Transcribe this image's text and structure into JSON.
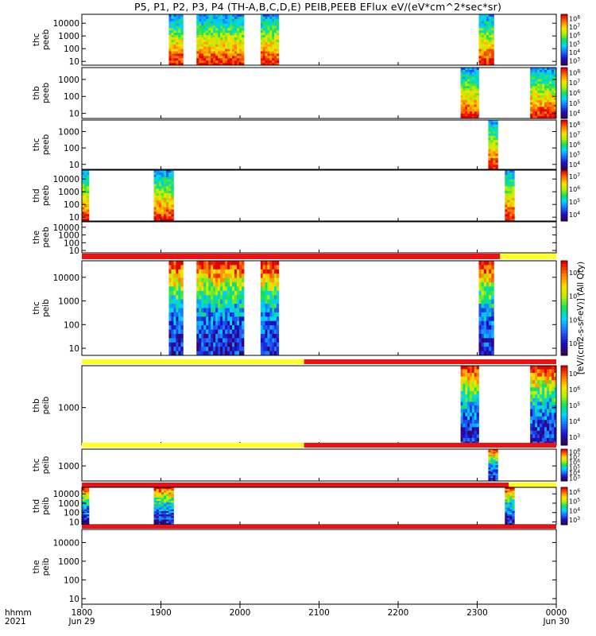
{
  "chart_data": {
    "type": "heatmap",
    "title": "P5, P1, P2, P3, P4 (TH-A,B,C,D,E) PEIB,PEEB EFlux eV/(eV*cm^2*sec*sr)",
    "colorbar_label": "[eV/(cm2-s-sr-eV)] (All Qty)",
    "x_axis": {
      "row_label_1": "hhmm",
      "row_label_2": "2021",
      "ticks": [
        "1800",
        "1900",
        "2000",
        "2100",
        "2200",
        "2300",
        "0000"
      ],
      "tick_values": [
        18,
        19,
        20,
        21,
        22,
        23,
        24
      ],
      "date_labels": [
        {
          "x": 18,
          "text": "Jun 29"
        },
        {
          "x": 24,
          "text": "Jun 30"
        }
      ],
      "range": [
        18,
        24
      ],
      "unit": "hours UT"
    },
    "panels": [
      {
        "probe": "thc",
        "instrument": "peeb",
        "ylabels": [
          "10000",
          "1000",
          "100",
          "10"
        ],
        "ylog": [
          5,
          50000
        ],
        "cbar_labels": [
          "10^3",
          "10^4",
          "10^5",
          "10^6",
          "10^7",
          "10^8"
        ],
        "flag_bar": null,
        "intervals": [
          [
            19.1,
            19.28
          ],
          [
            19.45,
            20.05
          ],
          [
            20.26,
            20.49
          ],
          [
            23.02,
            23.21
          ]
        ]
      },
      {
        "probe": "thb",
        "instrument": "peeb",
        "ylabels": [
          "1000",
          "100",
          "10"
        ],
        "ylog": [
          5,
          5000
        ],
        "cbar_labels": [
          "10^4",
          "10^5",
          "10^6",
          "10^7",
          "10^8"
        ],
        "flag_bar": null,
        "intervals": [
          [
            22.79,
            23.02
          ],
          [
            23.67,
            24.0
          ]
        ]
      },
      {
        "probe": "thc",
        "instrument": "peeb",
        "ylabels": [
          "1000",
          "100",
          "10"
        ],
        "ylog": [
          5,
          5000
        ],
        "cbar_labels": [
          "10^4",
          "10^5",
          "10^6",
          "10^7",
          "10^8"
        ],
        "flag_bar": null,
        "intervals": [
          [
            23.14,
            23.26
          ]
        ]
      },
      {
        "probe": "thd",
        "instrument": "peeb",
        "ylabels": [
          "10000",
          "1000",
          "100",
          "10"
        ],
        "ylog": [
          5,
          50000
        ],
        "cbar_labels": [
          "10^4",
          "10^5",
          "10^6",
          "10^7"
        ],
        "flag_bar": null,
        "intervals": [
          [
            18.0,
            18.09
          ],
          [
            18.91,
            19.16
          ],
          [
            23.35,
            23.47
          ]
        ]
      },
      {
        "probe": "the",
        "instrument": "peeb",
        "ylabels": [
          "10000",
          "1000",
          "100",
          "10"
        ],
        "ylog": [
          5,
          50000
        ],
        "cbar_labels": [],
        "flag_bar": null,
        "intervals": []
      },
      {
        "probe": "thc",
        "instrument": "peib",
        "ylabels": [
          "10000",
          "1000",
          "100",
          "10"
        ],
        "ylog": [
          5,
          50000
        ],
        "cbar_labels": [
          "10^3",
          "10^4",
          "10^5",
          "10^6"
        ],
        "flag_bar": [
          {
            "from": 18.0,
            "to": 23.29,
            "color": "#ee1111"
          },
          {
            "from": 23.29,
            "to": 24.0,
            "color": "#ffff22"
          }
        ],
        "intervals": [
          [
            19.1,
            19.28
          ],
          [
            19.45,
            20.05
          ],
          [
            20.26,
            20.49
          ],
          [
            23.02,
            23.21
          ]
        ]
      },
      {
        "probe": "thb",
        "instrument": "peib",
        "ylabels": [
          "1000"
        ],
        "ylog": [
          200,
          6000
        ],
        "cbar_labels": [
          "10^3",
          "10^4",
          "10^5",
          "10^6",
          "10^7"
        ],
        "flag_bar": [
          {
            "from": 18.0,
            "to": 20.81,
            "color": "#ffff22"
          },
          {
            "from": 20.81,
            "to": 24.0,
            "color": "#ee1111"
          }
        ],
        "intervals": [
          [
            22.79,
            23.02
          ],
          [
            23.67,
            24.0
          ]
        ]
      },
      {
        "probe": "thc",
        "instrument": "peib",
        "ylabels": [
          "1000"
        ],
        "ylog": [
          200,
          6000
        ],
        "cbar_labels": [
          "10^3",
          "10^4",
          "10^5",
          "10^6",
          "10^7",
          "10^8"
        ],
        "flag_bar": [
          {
            "from": 18.0,
            "to": 20.81,
            "color": "#ffff22"
          },
          {
            "from": 20.81,
            "to": 24.0,
            "color": "#ee1111"
          }
        ],
        "intervals": [
          [
            23.14,
            23.26
          ]
        ]
      },
      {
        "probe": "thd",
        "instrument": "peib",
        "ylabels": [
          "10000",
          "1000",
          "100",
          "10"
        ],
        "ylog": [
          5,
          50000
        ],
        "cbar_labels": [
          "10^3",
          "10^4",
          "10^5",
          "10^6"
        ],
        "flag_bar": [
          {
            "from": 18.0,
            "to": 23.4,
            "color": "#ee1111"
          },
          {
            "from": 23.4,
            "to": 24.0,
            "color": "#ffff22"
          }
        ],
        "intervals": [
          [
            18.0,
            18.09
          ],
          [
            18.91,
            19.16
          ],
          [
            23.35,
            23.47
          ]
        ]
      },
      {
        "probe": "the",
        "instrument": "peib",
        "ylabels": [
          "10000",
          "1000",
          "100",
          "10"
        ],
        "ylog": [
          5,
          50000
        ],
        "cbar_labels": [],
        "flag_bar": [
          {
            "from": 18.0,
            "to": 24.0,
            "color": "#ee1111"
          }
        ],
        "intervals": []
      }
    ],
    "grid": false
  }
}
